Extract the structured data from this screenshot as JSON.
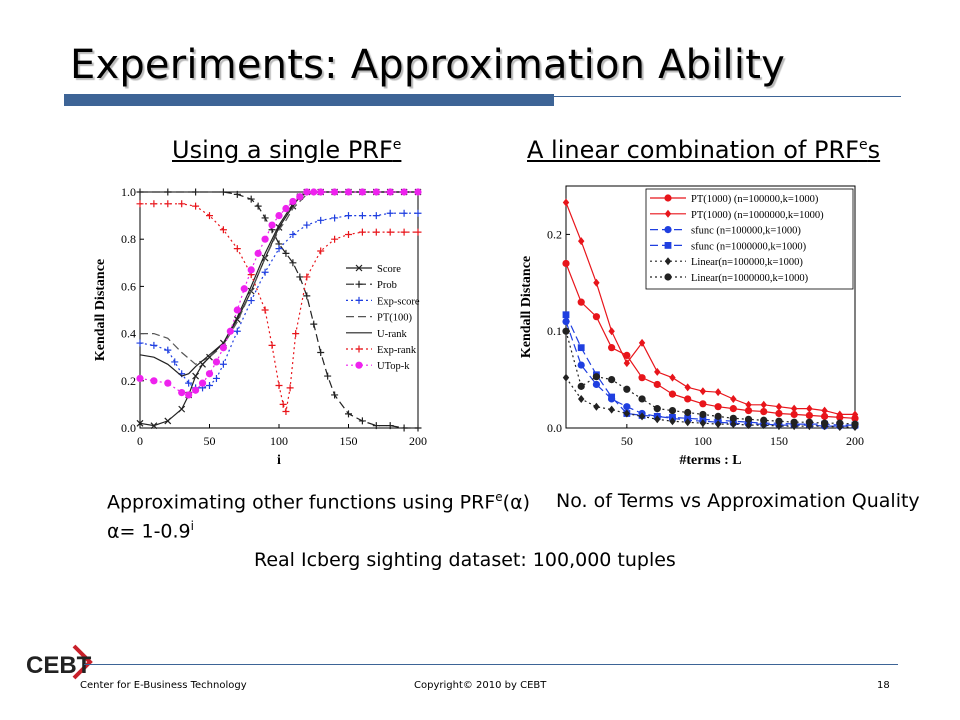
{
  "slide": {
    "title": "Experiments: Approximation Ability",
    "left_heading": "Using a single PRF",
    "left_heading_sup": "e",
    "right_heading_a": "A linear combination of PRF",
    "right_heading_sup": "e",
    "right_heading_b": "s",
    "caption_left_a": "Approximating other functions using PRF",
    "caption_left_sup": "e",
    "caption_left_b": "(α)",
    "caption_alpha_a": "α= 1-0.9",
    "caption_alpha_sup": "i",
    "caption_right": "No. of Terms vs Approximation Quality",
    "caption_center": "Real Icberg sighting dataset: 100,000 tuples",
    "footer_org": "Center for E-Business Technology",
    "footer_copyright": "Copyright© 2010 by CEBT",
    "page_number": "18",
    "logo_text": "CEBT",
    "colors": {
      "accent": "#3d6496",
      "logo_red": "#c8202a",
      "red": "#e8151b",
      "blue": "#1f3fe0",
      "magenta": "#ee22ee"
    }
  },
  "chart_data": [
    {
      "type": "line",
      "xlabel": "i",
      "ylabel": "Kendall Distance",
      "xlim": [
        0,
        200
      ],
      "ylim": [
        0,
        1.0
      ],
      "xticks": [
        "0",
        "50",
        "100",
        "150",
        "200"
      ],
      "yticks": [
        "0.0",
        "0.2",
        "0.4",
        "0.6",
        "0.8",
        "1.0"
      ],
      "legend_position": "right",
      "series": [
        {
          "name": "Score",
          "color": "#222222",
          "dash": "",
          "marker": "x",
          "x": [
            0,
            10,
            20,
            30,
            35,
            40,
            45,
            50,
            60,
            70,
            80,
            90,
            100,
            110,
            115,
            120,
            130,
            140,
            150,
            160,
            170,
            180,
            190,
            200
          ],
          "y": [
            0.02,
            0.01,
            0.03,
            0.08,
            0.14,
            0.22,
            0.27,
            0.3,
            0.36,
            0.46,
            0.58,
            0.72,
            0.85,
            0.94,
            0.98,
            1.0,
            1.0,
            1.0,
            1.0,
            1.0,
            1.0,
            1.0,
            1.0,
            1.0
          ]
        },
        {
          "name": "Prob",
          "color": "#222222",
          "dash": "8,4",
          "marker": "plus",
          "x": [
            0,
            20,
            40,
            60,
            70,
            80,
            85,
            90,
            95,
            100,
            105,
            110,
            115,
            120,
            125,
            130,
            135,
            140,
            150,
            160,
            170,
            180,
            190,
            200
          ],
          "y": [
            1.0,
            1.0,
            1.0,
            1.0,
            0.99,
            0.97,
            0.94,
            0.89,
            0.84,
            0.78,
            0.74,
            0.7,
            0.64,
            0.56,
            0.44,
            0.32,
            0.22,
            0.14,
            0.06,
            0.03,
            0.01,
            0.01,
            0.0,
            0.0
          ]
        },
        {
          "name": "Exp-score",
          "color": "#1f3fe0",
          "dash": "2,3",
          "marker": "plus",
          "x": [
            0,
            10,
            20,
            25,
            30,
            35,
            40,
            45,
            50,
            55,
            60,
            70,
            80,
            90,
            100,
            110,
            120,
            130,
            140,
            150,
            160,
            170,
            180,
            190,
            200
          ],
          "y": [
            0.36,
            0.35,
            0.33,
            0.28,
            0.23,
            0.19,
            0.17,
            0.17,
            0.18,
            0.21,
            0.27,
            0.41,
            0.54,
            0.66,
            0.76,
            0.82,
            0.86,
            0.88,
            0.89,
            0.9,
            0.9,
            0.9,
            0.91,
            0.91,
            0.91
          ]
        },
        {
          "name": "PT(100)",
          "color": "#555555",
          "dash": "8,4",
          "marker": "",
          "x": [
            0,
            10,
            20,
            30,
            40,
            50,
            60,
            70,
            80,
            90,
            100,
            105,
            110,
            120,
            130,
            140,
            160,
            200
          ],
          "y": [
            0.4,
            0.4,
            0.38,
            0.32,
            0.27,
            0.3,
            0.35,
            0.45,
            0.58,
            0.72,
            0.84,
            0.88,
            0.93,
            0.99,
            1.0,
            1.0,
            1.0,
            1.0
          ]
        },
        {
          "name": "U-rank",
          "color": "#222222",
          "dash": "",
          "marker": "",
          "x": [
            0,
            10,
            20,
            30,
            35,
            40,
            50,
            60,
            70,
            80,
            90,
            100,
            110,
            120,
            130,
            200
          ],
          "y": [
            0.31,
            0.3,
            0.27,
            0.22,
            0.23,
            0.26,
            0.31,
            0.36,
            0.47,
            0.6,
            0.74,
            0.86,
            0.95,
            1.0,
            1.0,
            1.0
          ]
        },
        {
          "name": "Exp-rank",
          "color": "#e8151b",
          "dash": "2,3",
          "marker": "plus",
          "x": [
            0,
            10,
            20,
            30,
            40,
            50,
            60,
            70,
            80,
            90,
            95,
            100,
            103,
            105,
            108,
            112,
            120,
            130,
            140,
            150,
            160,
            170,
            180,
            190,
            200
          ],
          "y": [
            0.95,
            0.95,
            0.95,
            0.95,
            0.94,
            0.9,
            0.84,
            0.76,
            0.65,
            0.5,
            0.35,
            0.18,
            0.1,
            0.07,
            0.17,
            0.4,
            0.64,
            0.75,
            0.8,
            0.82,
            0.83,
            0.83,
            0.83,
            0.83,
            0.83
          ]
        },
        {
          "name": "UTop-k",
          "color": "#ee22ee",
          "dash": "2,3",
          "marker": "dot",
          "x": [
            0,
            10,
            20,
            30,
            35,
            40,
            45,
            50,
            55,
            60,
            65,
            70,
            75,
            80,
            85,
            90,
            95,
            100,
            105,
            110,
            115,
            120,
            125,
            130,
            140,
            150,
            160,
            170,
            180,
            190,
            200
          ],
          "y": [
            0.21,
            0.2,
            0.19,
            0.15,
            0.14,
            0.16,
            0.19,
            0.23,
            0.28,
            0.34,
            0.41,
            0.5,
            0.59,
            0.67,
            0.74,
            0.8,
            0.86,
            0.9,
            0.93,
            0.96,
            0.98,
            1.0,
            1.0,
            1.0,
            1.0,
            1.0,
            1.0,
            1.0,
            1.0,
            1.0,
            1.0
          ]
        }
      ]
    },
    {
      "type": "line",
      "xlabel": "#terms : L",
      "ylabel": "Kendall Distance",
      "xlim": [
        10,
        200
      ],
      "ylim": [
        0,
        0.25
      ],
      "xticks": [
        "50",
        "100",
        "150",
        "200"
      ],
      "yticks": [
        "0.0",
        "0.1",
        "0.2"
      ],
      "legend_position": "top-right",
      "x": [
        10,
        20,
        30,
        40,
        50,
        60,
        70,
        80,
        90,
        100,
        110,
        120,
        130,
        140,
        150,
        160,
        170,
        180,
        190,
        200
      ],
      "series": [
        {
          "name": "PT(1000) (n=100000,k=1000)",
          "color": "#e8151b",
          "dash": "",
          "marker": "dot",
          "y": [
            0.17,
            0.13,
            0.115,
            0.083,
            0.075,
            0.052,
            0.045,
            0.035,
            0.03,
            0.025,
            0.022,
            0.02,
            0.018,
            0.017,
            0.015,
            0.014,
            0.013,
            0.012,
            0.011,
            0.01
          ]
        },
        {
          "name": "PT(1000) (n=1000000,k=1000)",
          "color": "#e8151b",
          "dash": "",
          "marker": "diamond",
          "y": [
            0.233,
            0.193,
            0.15,
            0.1,
            0.067,
            0.088,
            0.058,
            0.052,
            0.042,
            0.038,
            0.037,
            0.03,
            0.024,
            0.024,
            0.022,
            0.02,
            0.02,
            0.018,
            0.014,
            0.014
          ]
        },
        {
          "name": "sfunc (n=100000,k=1000)",
          "color": "#1f3fe0",
          "dash": "8,4",
          "marker": "dot",
          "y": [
            0.11,
            0.065,
            0.045,
            0.03,
            0.022,
            0.015,
            0.012,
            0.01,
            0.008,
            0.007,
            0.006,
            0.005,
            0.004,
            0.004,
            0.003,
            0.003,
            0.003,
            0.002,
            0.002,
            0.002
          ]
        },
        {
          "name": "sfunc (n=1000000,k=1000)",
          "color": "#1f3fe0",
          "dash": "8,4",
          "marker": "square",
          "y": [
            0.117,
            0.083,
            0.055,
            0.032,
            0.015,
            0.013,
            0.012,
            0.011,
            0.01,
            0.009,
            0.008,
            0.007,
            0.006,
            0.005,
            0.005,
            0.004,
            0.004,
            0.004,
            0.003,
            0.003
          ]
        },
        {
          "name": "Linear(n=100000,k=1000)",
          "color": "#222222",
          "dash": "2,3",
          "marker": "diamond",
          "y": [
            0.052,
            0.03,
            0.022,
            0.019,
            0.015,
            0.012,
            0.009,
            0.007,
            0.006,
            0.005,
            0.004,
            0.004,
            0.003,
            0.003,
            0.002,
            0.002,
            0.002,
            0.002,
            0.001,
            0.001
          ]
        },
        {
          "name": "Linear(n=1000000,k=1000)",
          "color": "#222222",
          "dash": "2,3",
          "marker": "dot",
          "y": [
            0.1,
            0.043,
            0.053,
            0.05,
            0.04,
            0.03,
            0.02,
            0.018,
            0.016,
            0.014,
            0.012,
            0.01,
            0.009,
            0.008,
            0.007,
            0.006,
            0.006,
            0.005,
            0.005,
            0.004
          ]
        }
      ]
    }
  ]
}
